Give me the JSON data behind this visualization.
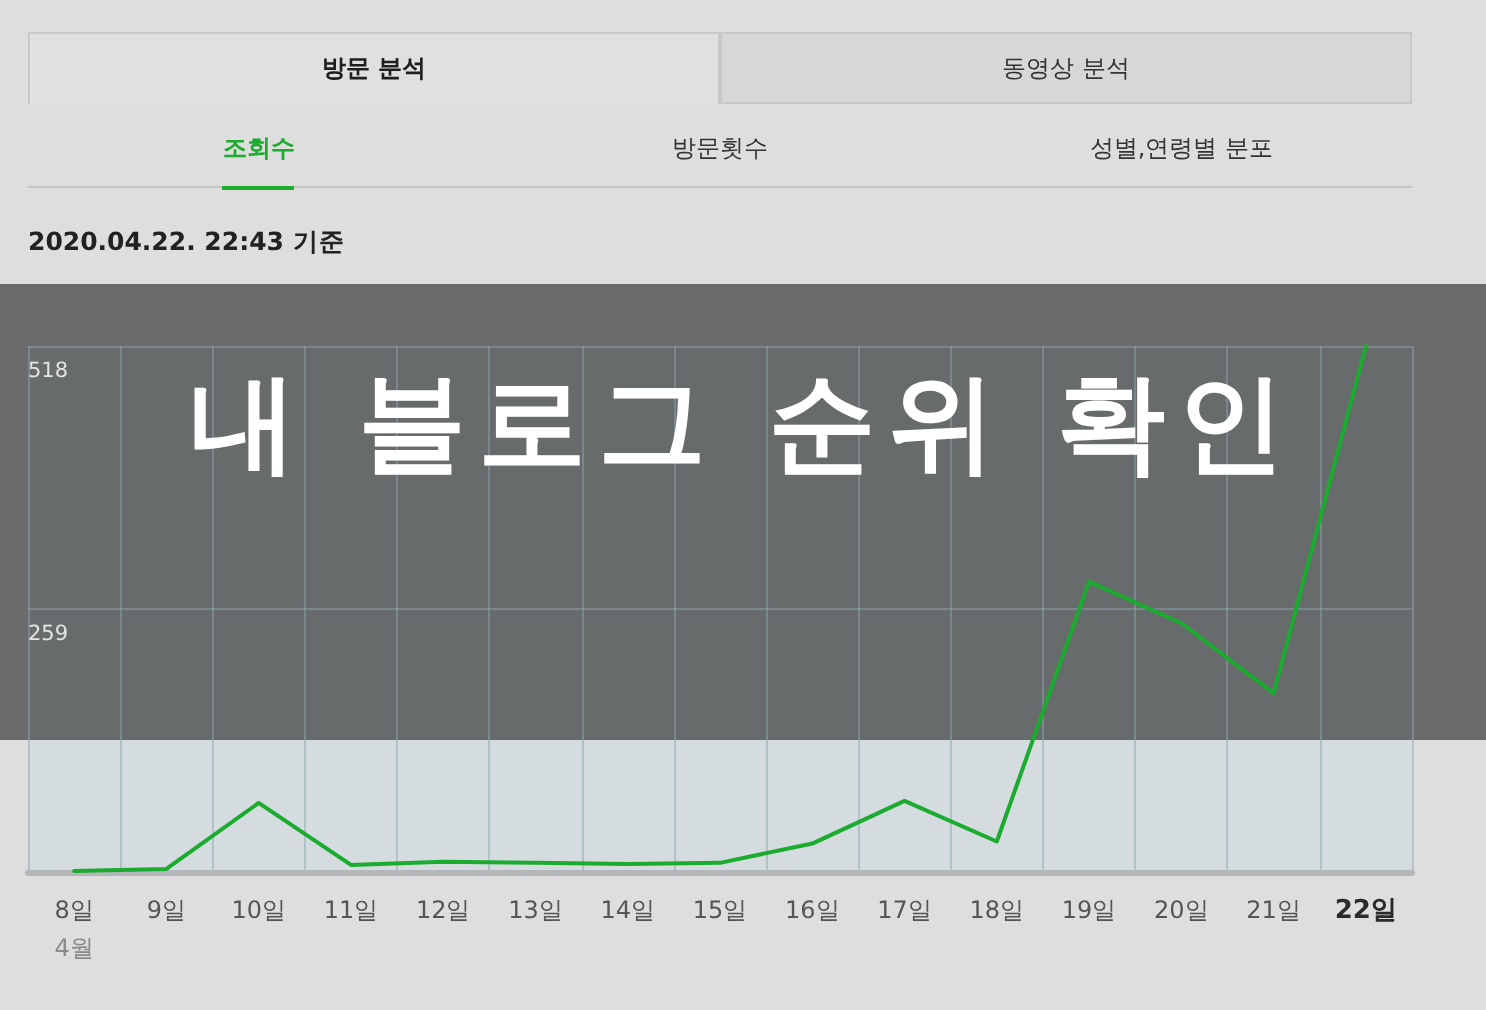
{
  "chart_data": {
    "type": "line",
    "title": "내 블로그 순위 확인",
    "subtitle": "2020.04.22. 22:43 기준",
    "xlabel": "4월",
    "annotations": [
      "방문 분석",
      "동영상 분석",
      "조회수",
      "방문횟수",
      "성별,연령별 분포"
    ],
    "categories": [
      "8일",
      "9일",
      "10일",
      "11일",
      "12일",
      "13일",
      "14일",
      "15일",
      "16일",
      "17일",
      "18일",
      "19일",
      "20일",
      "21일",
      "22일"
    ],
    "values": [
      1,
      3,
      68,
      7,
      10,
      9,
      8,
      9,
      28,
      70,
      30,
      286,
      245,
      176,
      518
    ],
    "color": "#1aab2f",
    "ylim": [
      0,
      518
    ],
    "yticks": [
      {
        "value": 0,
        "label": null
      },
      259,
      518
    ],
    "grid": true,
    "marker": "none"
  }
}
